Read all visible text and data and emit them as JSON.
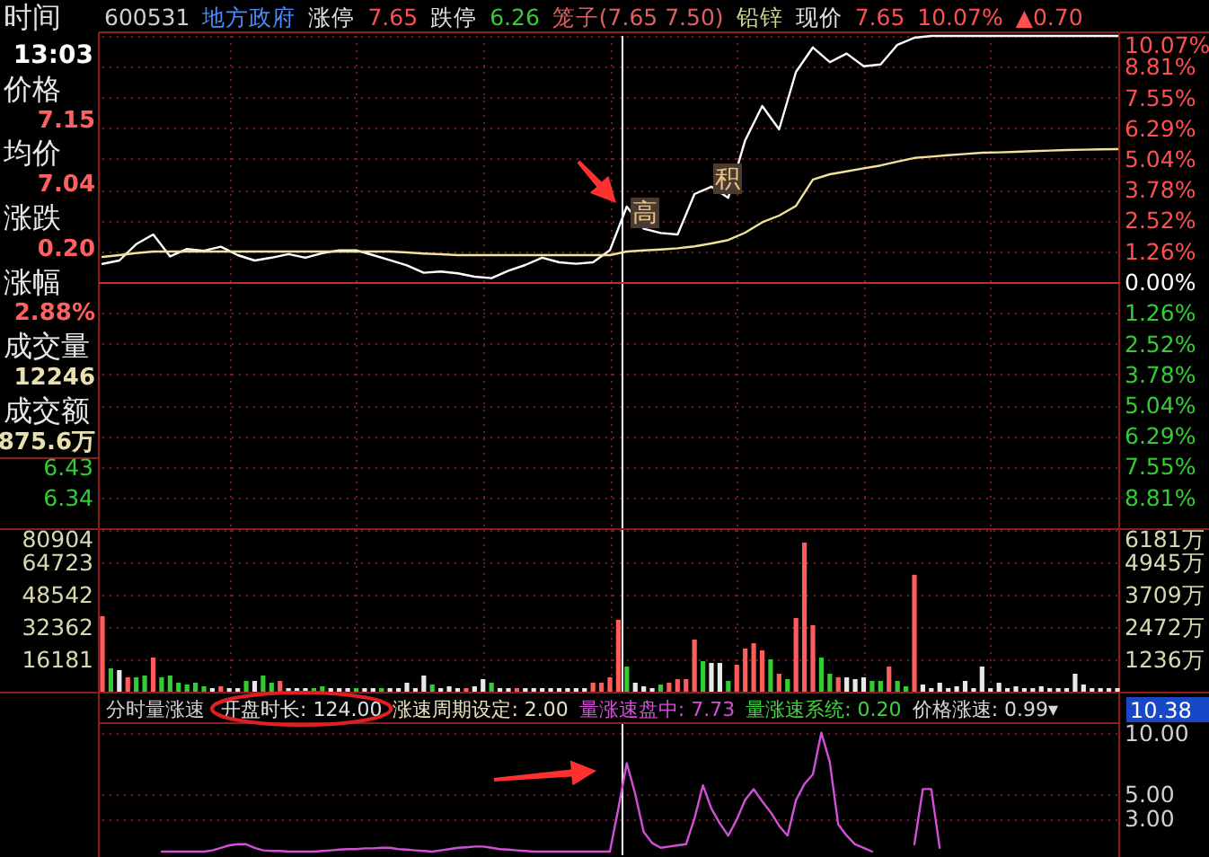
{
  "chart_data": [
    {
      "type": "line",
      "categories": [
        null,
        null,
        null,
        null,
        null,
        null,
        null,
        null,
        null,
        null,
        null,
        null,
        null,
        null,
        null,
        null,
        null,
        null,
        null,
        null,
        null,
        null,
        null,
        null,
        null,
        null,
        null,
        null,
        null,
        null,
        null,
        null,
        null,
        null,
        null,
        null,
        null,
        null,
        null,
        null,
        null,
        null,
        null,
        null,
        null,
        null,
        null,
        null,
        null,
        null,
        null,
        null,
        null,
        null,
        null,
        null,
        null,
        null,
        null,
        null,
        null
      ],
      "ylim": [
        -10.07,
        10.07
      ],
      "yticks": [
        {
          "value": 10.07,
          "label": "10.07%"
        },
        {
          "value": 8.81,
          "label": "8.81%"
        },
        {
          "value": 7.55,
          "label": "7.55%"
        },
        {
          "value": 6.29,
          "label": "6.29%"
        },
        {
          "value": 5.04,
          "label": "5.04%"
        },
        {
          "value": 3.78,
          "label": "3.78%"
        },
        {
          "value": 2.52,
          "label": "2.52%"
        },
        {
          "value": 1.26,
          "label": "1.26%"
        },
        {
          "value": 0,
          "label": "0.00%"
        },
        {
          "value": -1.26,
          "label": "1.26%"
        },
        {
          "value": -2.52,
          "label": "2.52%"
        },
        {
          "value": -3.78,
          "label": "3.78%"
        },
        {
          "value": -5.04,
          "label": "5.04%"
        },
        {
          "value": -6.29,
          "label": "6.29%"
        },
        {
          "value": -7.55,
          "label": "7.55%"
        },
        {
          "value": -8.81,
          "label": "8.81%"
        }
      ],
      "y2lim": [
        6.25,
        7.7
      ],
      "y2ticks": [
        6.43,
        6.34
      ],
      "grid": true,
      "tick_labels": "y",
      "series": [
        {
          "color": "#ffffff",
          "values": [
            0.74,
            0.88,
            1.55,
            1.95,
            1.05,
            1.35,
            1.28,
            1.45,
            1.1,
            0.88,
            1.0,
            1.15,
            1.0,
            1.18,
            1.3,
            1.3,
            1.1,
            0.9,
            0.68,
            0.38,
            0.43,
            0.36,
            0.22,
            0.16,
            0.46,
            0.7,
            1.0,
            0.81,
            0.75,
            0.81,
            1.3,
            3.09,
            2.18,
            2.01,
            1.95,
            3.6,
            3.9,
            3.45,
            5.8,
            7.2,
            6.25,
            8.6,
            9.6,
            9.0,
            9.35,
            8.83,
            8.9,
            9.71,
            10.0,
            10.07,
            10.07,
            10.07,
            10.07,
            10.07,
            10.07,
            10.07,
            10.07,
            10.07,
            10.07,
            10.07,
            10.07
          ]
        },
        {
          "color": "#f0e29a",
          "values": [
            1.03,
            1.1,
            1.18,
            1.25,
            1.25,
            1.25,
            1.25,
            1.25,
            1.25,
            1.25,
            1.25,
            1.25,
            1.25,
            1.25,
            1.25,
            1.25,
            1.25,
            1.25,
            1.21,
            1.17,
            1.14,
            1.1,
            1.1,
            1.1,
            1.1,
            1.1,
            1.1,
            1.1,
            1.1,
            1.1,
            1.1,
            1.25,
            1.29,
            1.33,
            1.38,
            1.46,
            1.58,
            1.72,
            2.02,
            2.45,
            2.72,
            3.12,
            4.2,
            4.41,
            4.53,
            4.65,
            4.77,
            4.93,
            5.08,
            5.13,
            5.19,
            5.24,
            5.29,
            5.31,
            5.33,
            5.36,
            5.38,
            5.4,
            5.42,
            5.43,
            5.44
          ]
        }
      ],
      "ref_lines": [
        {
          "axis": "y",
          "value": 0,
          "color": "#c03030"
        }
      ],
      "annotations": [
        "高",
        "积"
      ]
    },
    {
      "type": "bar",
      "categories": [
        null,
        null,
        null,
        null,
        null,
        null,
        null,
        null,
        null,
        null,
        null,
        null,
        null,
        null,
        null,
        null,
        null,
        null,
        null,
        null,
        null,
        null,
        null,
        null,
        null,
        null,
        null,
        null,
        null,
        null,
        null,
        null,
        null,
        null,
        null,
        null,
        null,
        null,
        null,
        null,
        null,
        null,
        null,
        null,
        null,
        null,
        null,
        null,
        null,
        null,
        null,
        null,
        null,
        null,
        null,
        null,
        null,
        null,
        null,
        null,
        null,
        null,
        null,
        null,
        null,
        null,
        null,
        null,
        null,
        null,
        null,
        null,
        null,
        null,
        null,
        null,
        null,
        null,
        null,
        null,
        null,
        null,
        null,
        null,
        null,
        null,
        null,
        null,
        null,
        null,
        null,
        null,
        null,
        null,
        null,
        null,
        null,
        null,
        null,
        null,
        null,
        null,
        null,
        null,
        null,
        null,
        null,
        null,
        null,
        null,
        null,
        null,
        null,
        null,
        null,
        null,
        null,
        null,
        null,
        null,
        null
      ],
      "ylim": [
        0,
        80904
      ],
      "yticks": [
        16181,
        32362,
        48542,
        64723,
        80904
      ],
      "y2lim": [
        0,
        6181
      ],
      "y2ticks": [
        {
          "value": 1236,
          "label": "1236万"
        },
        {
          "value": 2472,
          "label": "2472万"
        },
        {
          "value": 3709,
          "label": "3709万"
        },
        {
          "value": 4945,
          "label": "4945万"
        },
        {
          "value": 6181,
          "label": "6181万"
        }
      ],
      "grid": true,
      "tick_labels": "y",
      "values": [
        37800,
        11700,
        10800,
        7200,
        7200,
        8100,
        17100,
        7200,
        8100,
        4500,
        3600,
        4500,
        2700,
        1800,
        2700,
        1800,
        1800,
        5400,
        5400,
        8100,
        4500,
        5400,
        1800,
        1800,
        1800,
        1800,
        2700,
        1800,
        1800,
        1800,
        1800,
        1800,
        1800,
        1800,
        1800,
        1800,
        4500,
        1800,
        8100,
        3600,
        1800,
        2700,
        1800,
        1800,
        2700,
        6300,
        4500,
        1800,
        1800,
        1800,
        1800,
        1800,
        1800,
        1800,
        1800,
        1800,
        1800,
        1800,
        4500,
        4500,
        7200,
        36000,
        12600,
        4500,
        2700,
        1800,
        3600,
        4500,
        6300,
        6300,
        26100,
        15300,
        14400,
        14400,
        5400,
        13500,
        21600,
        24300,
        20700,
        16200,
        9000,
        6300,
        36900,
        74600,
        33300,
        17100,
        9000,
        7200,
        7200,
        6300,
        7200,
        5400,
        5400,
        12600,
        5400,
        2700,
        58500,
        3600,
        1800,
        4500,
        1800,
        2700,
        5400,
        1800,
        12600,
        1800,
        4500,
        1800,
        2700,
        1800,
        1800,
        2700,
        1800,
        1800,
        1800,
        9000,
        3600,
        1800,
        1800,
        1800,
        1800
      ],
      "colors": [
        "#ff5c5c",
        "#33cc33",
        "#e8e8e8",
        "#ff5c5c",
        "#33cc33",
        "#33cc33",
        "#ff5c5c",
        "#33cc33",
        "#33cc33",
        "#33cc33",
        "#33cc33",
        "#33cc33",
        "#33cc33",
        "#e8e8e8",
        "#ff5c5c",
        "#e8e8e8",
        "#e8e8e8",
        "#33cc33",
        "#e8e8e8",
        "#33cc33",
        "#33cc33",
        "#ff5c5c",
        "#e8e8e8",
        "#e8e8e8",
        "#e8e8e8",
        "#33cc33",
        "#33cc33",
        "#e8e8e8",
        "#e8e8e8",
        "#e8e8e8",
        "#33cc33",
        "#e8e8e8",
        "#e8e8e8",
        "#33cc33",
        "#e8e8e8",
        "#e8e8e8",
        "#e8e8e8",
        "#e8e8e8",
        "#e8e8e8",
        "#33cc33",
        "#e8e8e8",
        "#e8e8e8",
        "#e8e8e8",
        "#ff5c5c",
        "#e8e8e8",
        "#e8e8e8",
        "#33cc33",
        "#e8e8e8",
        "#e8e8e8",
        "#ff5c5c",
        "#e8e8e8",
        "#e8e8e8",
        "#e8e8e8",
        "#e8e8e8",
        "#e8e8e8",
        "#e8e8e8",
        "#e8e8e8",
        "#e8e8e8",
        "#ff5c5c",
        "#ff5c5c",
        "#ff5c5c",
        "#ff5c5c",
        "#33cc33",
        "#e8e8e8",
        "#e8e8e8",
        "#e8e8e8",
        "#33cc33",
        "#ff5c5c",
        "#ff5c5c",
        "#ff5c5c",
        "#ff5c5c",
        "#33cc33",
        "#e8e8e8",
        "#e8e8e8",
        "#33cc33",
        "#ff5c5c",
        "#ff5c5c",
        "#ff5c5c",
        "#ff5c5c",
        "#33cc33",
        "#ff5c5c",
        "#33cc33",
        "#ff5c5c",
        "#ff5c5c",
        "#ff5c5c",
        "#33cc33",
        "#33cc33",
        "#ff5c5c",
        "#e8e8e8",
        "#e8e8e8",
        "#e8e8e8",
        "#33cc33",
        "#33cc33",
        "#ff5c5c",
        "#33cc33",
        "#33cc33",
        "#ff5c5c",
        "#e8e8e8",
        "#e8e8e8",
        "#e8e8e8",
        "#e8e8e8",
        "#e8e8e8",
        "#e8e8e8",
        "#e8e8e8",
        "#e8e8e8",
        "#e8e8e8",
        "#e8e8e8",
        "#e8e8e8",
        "#e8e8e8",
        "#e8e8e8",
        "#e8e8e8",
        "#e8e8e8",
        "#e8e8e8",
        "#e8e8e8",
        "#e8e8e8",
        "#e8e8e8",
        "#e8e8e8",
        "#e8e8e8",
        "#e8e8e8",
        "#e8e8e8",
        "#e8e8e8"
      ]
    },
    {
      "type": "line",
      "title": "分时量涨速",
      "categories": [
        null,
        null,
        null,
        null,
        null,
        null,
        null,
        null,
        null,
        null,
        null,
        null,
        null,
        null,
        null,
        null,
        null,
        null,
        null,
        null,
        null,
        null,
        null,
        null,
        null,
        null,
        null,
        null,
        null,
        null,
        null,
        null,
        null,
        null,
        null,
        null,
        null,
        null,
        null,
        null,
        null,
        null,
        null,
        null,
        null,
        null,
        null,
        null,
        null,
        null,
        null,
        null,
        null,
        null,
        null,
        null,
        null,
        null,
        null,
        null,
        null,
        null,
        null,
        null,
        null,
        null,
        null,
        null,
        null,
        null,
        null,
        null,
        null,
        null,
        null,
        null,
        null,
        null,
        null,
        null,
        null,
        null,
        null,
        null,
        null,
        null,
        null,
        null,
        null,
        null,
        null,
        null,
        null,
        null,
        null,
        null,
        null,
        null,
        null,
        null,
        null,
        null,
        null,
        null,
        null,
        null,
        null,
        null,
        null,
        null,
        null,
        null,
        null,
        null,
        null,
        null,
        null,
        null,
        null,
        null,
        null
      ],
      "ylim": [
        0,
        10.7
      ],
      "yticks": [
        {
          "value": 3,
          "label": "3.00"
        },
        {
          "value": 5,
          "label": "5.00"
        },
        {
          "value": 10,
          "label": "10.00"
        }
      ],
      "grid": "y",
      "tick_labels": "y",
      "series": [
        {
          "color": "#d24fd8",
          "values": [
            null,
            null,
            null,
            null,
            null,
            null,
            null,
            0.3,
            0.3,
            0.3,
            0.3,
            0.3,
            0.3,
            0.4,
            0.6,
            0.8,
            0.9,
            0.9,
            0.6,
            0.4,
            0.35,
            0.35,
            0.3,
            0.3,
            0.3,
            0.3,
            0.35,
            0.4,
            0.45,
            0.5,
            0.5,
            0.55,
            0.55,
            0.6,
            0.6,
            0.5,
            0.45,
            0.4,
            0.35,
            0.3,
            0.4,
            0.5,
            0.6,
            0.65,
            0.7,
            0.7,
            0.6,
            0.5,
            0.45,
            0.4,
            0.35,
            0.3,
            0.3,
            0.3,
            0.3,
            0.3,
            0.3,
            0.3,
            0.3,
            0.3,
            0.3,
            3.8,
            7.5,
            5.0,
            1.9,
            1.0,
            0.6,
            0.7,
            0.8,
            0.9,
            3.0,
            5.7,
            3.8,
            2.6,
            1.6,
            2.9,
            4.5,
            5.4,
            4.4,
            3.5,
            2.4,
            1.6,
            4.5,
            5.8,
            6.6,
            10.0,
            7.6,
            2.5,
            1.6,
            0.9,
            0.6,
            0.3,
            null,
            null,
            null,
            null,
            0.9,
            5.4,
            5.4,
            0.6,
            null,
            null,
            null,
            null,
            null,
            null,
            null,
            null,
            null,
            null,
            null,
            null,
            null,
            null,
            null,
            null,
            null,
            null,
            null,
            null,
            null
          ]
        }
      ],
      "annotations": [
        "开盘时长: 124.00",
        "涨速周期设定: 2.00",
        "量涨速盘中: 7.73",
        "量涨速系统: 0.20",
        "价格涨速: 0.99▾",
        "10.38"
      ]
    },
    {
      "type": "other",
      "annotations": [
        "时间",
        "600531",
        "地方政府",
        "涨停",
        "7.65",
        "跌停",
        "6.26",
        "笼子(7.65 7.50)",
        "铅锌",
        "现价",
        "7.65",
        "10.07%",
        "▲0.70",
        "13:03",
        "价格",
        "7.15",
        "均价",
        "7.04",
        "涨跌",
        "0.20",
        "涨幅",
        "2.88%",
        "成交量",
        "12246",
        "成交额",
        "875.6万"
      ]
    }
  ]
}
